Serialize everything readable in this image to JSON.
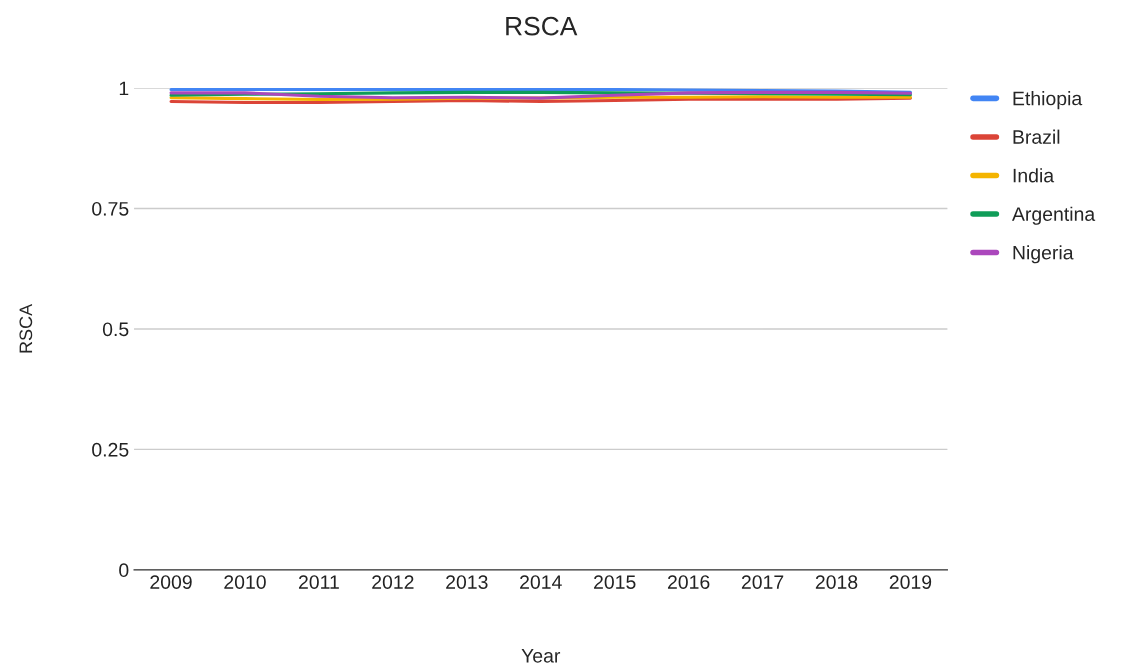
{
  "chart_data": {
    "type": "line",
    "title": "RSCA",
    "xlabel": "Year",
    "ylabel": "RSCA",
    "categories": [
      "2009",
      "2010",
      "2011",
      "2012",
      "2013",
      "2014",
      "2015",
      "2016",
      "2017",
      "2018",
      "2019"
    ],
    "series": [
      {
        "name": "Ethiopia",
        "color": "#4285f4",
        "values": [
          0.997,
          0.997,
          0.997,
          0.997,
          0.997,
          0.997,
          0.997,
          0.996,
          0.995,
          0.994,
          0.991
        ]
      },
      {
        "name": "Brazil",
        "color": "#db4437",
        "values": [
          0.972,
          0.97,
          0.97,
          0.972,
          0.974,
          0.972,
          0.974,
          0.977,
          0.977,
          0.977,
          0.979
        ]
      },
      {
        "name": "India",
        "color": "#f4b400",
        "values": [
          0.98,
          0.978,
          0.976,
          0.977,
          0.979,
          0.979,
          0.981,
          0.981,
          0.982,
          0.981,
          0.981
        ]
      },
      {
        "name": "Argentina",
        "color": "#0f9d58",
        "values": [
          0.985,
          0.987,
          0.988,
          0.99,
          0.991,
          0.991,
          0.99,
          0.989,
          0.988,
          0.987,
          0.986
        ]
      },
      {
        "name": "Nigeria",
        "color": "#ab47bc",
        "values": [
          0.99,
          0.99,
          0.983,
          0.98,
          0.981,
          0.979,
          0.985,
          0.99,
          0.991,
          0.991,
          0.989
        ]
      }
    ],
    "ylim": [
      0,
      1
    ],
    "yticks": [
      0,
      0.25,
      0.5,
      0.75,
      1
    ],
    "grid": "y",
    "legend": "right",
    "marker": "none",
    "line_style": "solid"
  }
}
